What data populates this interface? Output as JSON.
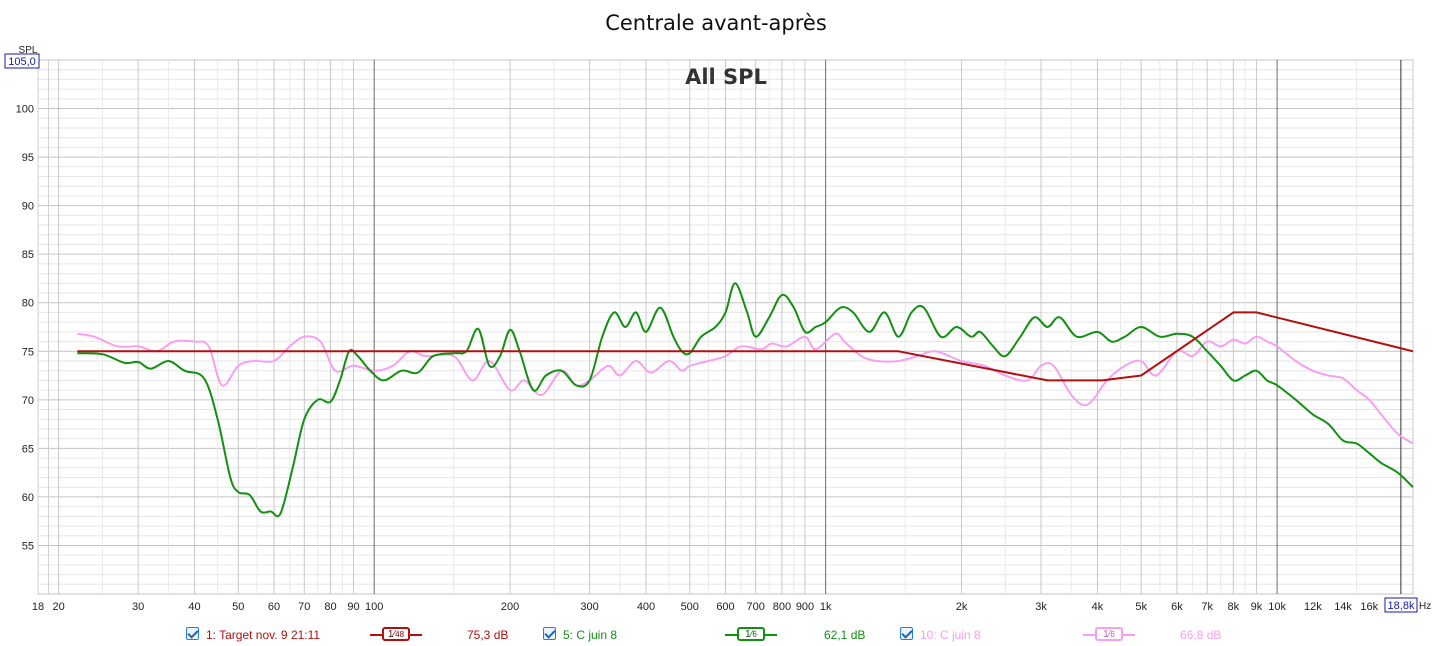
{
  "chart_data": {
    "type": "line",
    "title": "Centrale avant-après",
    "overlay_title": "All SPL",
    "ylabel": "SPL",
    "xunit": "Hz",
    "xscale": "log",
    "xlim": [
      18,
      20000
    ],
    "ylim": [
      50,
      105
    ],
    "y_top_label": "105,0",
    "x_right_label": "18,8k",
    "y_ticks": [
      55,
      60,
      65,
      70,
      75,
      80,
      85,
      90,
      95,
      100
    ],
    "x_ticks": [
      {
        "v": 18,
        "l": "18"
      },
      {
        "v": 20,
        "l": "20"
      },
      {
        "v": 30,
        "l": "30"
      },
      {
        "v": 40,
        "l": "40"
      },
      {
        "v": 50,
        "l": "50"
      },
      {
        "v": 60,
        "l": "60"
      },
      {
        "v": 70,
        "l": "70"
      },
      {
        "v": 80,
        "l": "80"
      },
      {
        "v": 90,
        "l": "90"
      },
      {
        "v": 100,
        "l": "100"
      },
      {
        "v": 200,
        "l": "200"
      },
      {
        "v": 300,
        "l": "300"
      },
      {
        "v": 400,
        "l": "400"
      },
      {
        "v": 500,
        "l": "500"
      },
      {
        "v": 600,
        "l": "600"
      },
      {
        "v": 700,
        "l": "700"
      },
      {
        "v": 800,
        "l": "800"
      },
      {
        "v": 900,
        "l": "900"
      },
      {
        "v": 1000,
        "l": "1k"
      },
      {
        "v": 2000,
        "l": "2k"
      },
      {
        "v": 3000,
        "l": "3k"
      },
      {
        "v": 4000,
        "l": "4k"
      },
      {
        "v": 5000,
        "l": "5k"
      },
      {
        "v": 6000,
        "l": "6k"
      },
      {
        "v": 7000,
        "l": "7k"
      },
      {
        "v": 8000,
        "l": "8k"
      },
      {
        "v": 9000,
        "l": "9k"
      },
      {
        "v": 10000,
        "l": "10k"
      },
      {
        "v": 12000,
        "l": "12k"
      },
      {
        "v": 14000,
        "l": "14k"
      },
      {
        "v": 16000,
        "l": "16k"
      }
    ],
    "grid": true,
    "series": [
      {
        "name": "1: Target nov. 9 21:11",
        "color": "#b01010",
        "points": [
          [
            22,
            75.0
          ],
          [
            1450,
            75.0
          ],
          [
            3100,
            72.0
          ],
          [
            4100,
            72.0
          ],
          [
            5000,
            72.5
          ],
          [
            8000,
            79.0
          ],
          [
            9000,
            79.0
          ],
          [
            20000,
            75.0
          ]
        ]
      },
      {
        "name": "5: C juin 8",
        "color": "#129012",
        "points": [
          [
            22,
            74.8
          ],
          [
            25,
            74.7
          ],
          [
            28,
            73.8
          ],
          [
            30,
            73.9
          ],
          [
            32,
            73.2
          ],
          [
            35,
            74.0
          ],
          [
            38,
            73.0
          ],
          [
            42,
            72.2
          ],
          [
            45,
            68.0
          ],
          [
            48,
            62.0
          ],
          [
            50,
            60.5
          ],
          [
            53,
            60.2
          ],
          [
            56,
            58.5
          ],
          [
            59,
            58.5
          ],
          [
            62,
            58.3
          ],
          [
            66,
            63.0
          ],
          [
            70,
            68.0
          ],
          [
            75,
            70.0
          ],
          [
            80,
            69.8
          ],
          [
            84,
            72.0
          ],
          [
            88,
            75.0
          ],
          [
            92,
            74.5
          ],
          [
            98,
            73.0
          ],
          [
            105,
            72.0
          ],
          [
            115,
            73.0
          ],
          [
            125,
            72.8
          ],
          [
            135,
            74.5
          ],
          [
            150,
            74.8
          ],
          [
            160,
            75.0
          ],
          [
            170,
            77.3
          ],
          [
            180,
            73.5
          ],
          [
            190,
            74.5
          ],
          [
            200,
            77.2
          ],
          [
            210,
            75.0
          ],
          [
            225,
            71.0
          ],
          [
            240,
            72.5
          ],
          [
            260,
            73.0
          ],
          [
            280,
            71.5
          ],
          [
            300,
            72.0
          ],
          [
            320,
            76.5
          ],
          [
            340,
            79.0
          ],
          [
            360,
            77.5
          ],
          [
            380,
            79.0
          ],
          [
            400,
            77.0
          ],
          [
            430,
            79.5
          ],
          [
            460,
            76.5
          ],
          [
            480,
            75.0
          ],
          [
            500,
            74.8
          ],
          [
            530,
            76.5
          ],
          [
            570,
            77.5
          ],
          [
            600,
            79.0
          ],
          [
            630,
            82.0
          ],
          [
            670,
            79.0
          ],
          [
            700,
            76.5
          ],
          [
            750,
            78.5
          ],
          [
            800,
            80.8
          ],
          [
            850,
            79.5
          ],
          [
            900,
            77.0
          ],
          [
            950,
            77.5
          ],
          [
            1000,
            78.0
          ],
          [
            1080,
            79.5
          ],
          [
            1150,
            79.0
          ],
          [
            1250,
            77.0
          ],
          [
            1350,
            79.0
          ],
          [
            1450,
            76.5
          ],
          [
            1550,
            79.0
          ],
          [
            1650,
            79.5
          ],
          [
            1800,
            76.5
          ],
          [
            1950,
            77.5
          ],
          [
            2100,
            76.5
          ],
          [
            2200,
            77.0
          ],
          [
            2350,
            75.5
          ],
          [
            2500,
            74.5
          ],
          [
            2700,
            76.5
          ],
          [
            2900,
            78.5
          ],
          [
            3100,
            77.5
          ],
          [
            3300,
            78.5
          ],
          [
            3600,
            76.5
          ],
          [
            4000,
            77.0
          ],
          [
            4300,
            76.0
          ],
          [
            4600,
            76.5
          ],
          [
            5000,
            77.5
          ],
          [
            5500,
            76.5
          ],
          [
            6000,
            76.8
          ],
          [
            6500,
            76.5
          ],
          [
            7000,
            75.0
          ],
          [
            7500,
            73.5
          ],
          [
            8000,
            72.0
          ],
          [
            8500,
            72.5
          ],
          [
            9000,
            73.0
          ],
          [
            9500,
            72.0
          ],
          [
            10000,
            71.5
          ],
          [
            11000,
            70.0
          ],
          [
            12000,
            68.5
          ],
          [
            13000,
            67.5
          ],
          [
            14000,
            65.8
          ],
          [
            15000,
            65.5
          ],
          [
            16000,
            64.5
          ],
          [
            17000,
            63.5
          ],
          [
            18500,
            62.5
          ],
          [
            20000,
            61.0
          ]
        ]
      },
      {
        "name": "10: C juin 8",
        "color": "#f7a0f0",
        "points": [
          [
            22,
            76.8
          ],
          [
            24,
            76.5
          ],
          [
            27,
            75.5
          ],
          [
            30,
            75.5
          ],
          [
            33,
            75.0
          ],
          [
            36,
            76.0
          ],
          [
            40,
            76.0
          ],
          [
            43,
            75.5
          ],
          [
            46,
            71.5
          ],
          [
            50,
            73.5
          ],
          [
            54,
            74.0
          ],
          [
            60,
            74.0
          ],
          [
            65,
            75.5
          ],
          [
            70,
            76.5
          ],
          [
            76,
            76.0
          ],
          [
            82,
            73.0
          ],
          [
            90,
            73.5
          ],
          [
            100,
            73.0
          ],
          [
            110,
            73.5
          ],
          [
            120,
            75.0
          ],
          [
            130,
            74.5
          ],
          [
            150,
            74.5
          ],
          [
            165,
            72.0
          ],
          [
            180,
            74.0
          ],
          [
            200,
            71.0
          ],
          [
            215,
            72.0
          ],
          [
            235,
            70.5
          ],
          [
            260,
            73.0
          ],
          [
            280,
            71.5
          ],
          [
            300,
            72.0
          ],
          [
            330,
            73.5
          ],
          [
            350,
            72.5
          ],
          [
            380,
            74.0
          ],
          [
            410,
            72.8
          ],
          [
            450,
            74.0
          ],
          [
            480,
            73.0
          ],
          [
            500,
            73.5
          ],
          [
            550,
            74.0
          ],
          [
            600,
            74.5
          ],
          [
            650,
            75.5
          ],
          [
            720,
            75.2
          ],
          [
            760,
            75.8
          ],
          [
            820,
            75.5
          ],
          [
            900,
            76.5
          ],
          [
            950,
            75.2
          ],
          [
            1050,
            76.8
          ],
          [
            1100,
            76.0
          ],
          [
            1200,
            74.5
          ],
          [
            1300,
            74.0
          ],
          [
            1450,
            74.0
          ],
          [
            1600,
            74.5
          ],
          [
            1750,
            75.0
          ],
          [
            2000,
            74.0
          ],
          [
            2250,
            73.5
          ],
          [
            2500,
            72.5
          ],
          [
            2800,
            72.0
          ],
          [
            3000,
            73.5
          ],
          [
            3200,
            73.5
          ],
          [
            3500,
            70.5
          ],
          [
            3800,
            69.5
          ],
          [
            4200,
            72.0
          ],
          [
            4600,
            73.5
          ],
          [
            5000,
            74.0
          ],
          [
            5400,
            72.5
          ],
          [
            6000,
            75.0
          ],
          [
            6500,
            74.5
          ],
          [
            7000,
            76.0
          ],
          [
            7500,
            75.5
          ],
          [
            8000,
            76.2
          ],
          [
            8500,
            75.8
          ],
          [
            9000,
            76.5
          ],
          [
            9500,
            76.0
          ],
          [
            10000,
            75.5
          ],
          [
            11000,
            74.0
          ],
          [
            12000,
            73.0
          ],
          [
            13000,
            72.5
          ],
          [
            14000,
            72.2
          ],
          [
            15000,
            71.0
          ],
          [
            16000,
            70.0
          ],
          [
            17000,
            68.5
          ],
          [
            18500,
            66.5
          ],
          [
            20000,
            65.5
          ]
        ]
      }
    ]
  },
  "legend": [
    {
      "label": "1: Target nov. 9 21:11",
      "smoothing_num": "1",
      "smoothing_den": "48",
      "value": "75,3 dB",
      "color": "#b01010",
      "checked": true
    },
    {
      "label": "5: C juin 8",
      "smoothing_num": "1",
      "smoothing_den": "6",
      "value": "62,1 dB",
      "color": "#129012",
      "checked": true
    },
    {
      "label": "10: C juin 8",
      "smoothing_num": "1",
      "smoothing_den": "6",
      "value": "66,8 dB",
      "color": "#f7a0f0",
      "checked": true
    }
  ]
}
